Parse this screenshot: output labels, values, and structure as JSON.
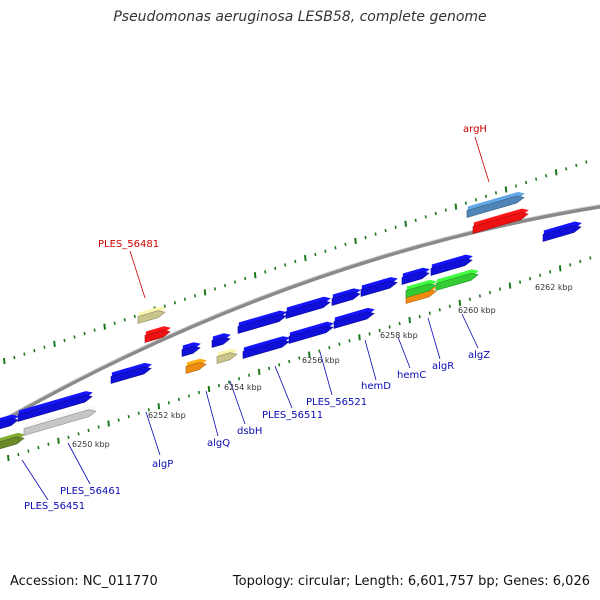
{
  "title": "Pseudomonas aeruginosa LESB58, complete genome",
  "footer": {
    "accession": "Accession: NC_011770",
    "summary": "Topology: circular; Length: 6,601,757 bp; Genes: 6,026"
  },
  "colors": {
    "forward_gene": "#1010d8",
    "label_blue": "#0a0ab4",
    "label_red": "#cc0000",
    "backbone": "#8a8a8a",
    "tick": "#1a7a1a"
  },
  "ruler_labels": [
    "6250 kbp",
    "6252 kbp",
    "6254 kbp",
    "6256 kbp",
    "6258 kbp",
    "6260 kbp",
    "6262 kbp"
  ],
  "gene_labels": [
    {
      "text": "argH",
      "color": "red"
    },
    {
      "text": "PLES_56481",
      "color": "red"
    },
    {
      "text": "PLES_56451",
      "color": "blue"
    },
    {
      "text": "PLES_56461",
      "color": "blue"
    },
    {
      "text": "algP",
      "color": "blue"
    },
    {
      "text": "algQ",
      "color": "blue"
    },
    {
      "text": "dsbH",
      "color": "blue"
    },
    {
      "text": "PLES_56511",
      "color": "blue"
    },
    {
      "text": "PLES_56521",
      "color": "blue"
    },
    {
      "text": "hemD",
      "color": "blue"
    },
    {
      "text": "hemC",
      "color": "blue"
    },
    {
      "text": "algR",
      "color": "blue"
    },
    {
      "text": "algZ",
      "color": "blue"
    }
  ]
}
